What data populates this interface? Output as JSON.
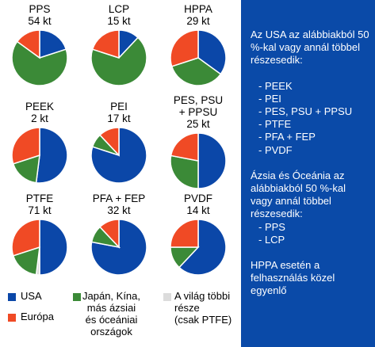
{
  "chart_data": {
    "type": "pie",
    "colors": {
      "usa": "#0b47a8",
      "europe": "#f04a25",
      "asia": "#3b8a37",
      "rest": "#dcdcdc"
    },
    "pies": [
      {
        "title": "PPS",
        "subtitle": "54 kt",
        "values": {
          "usa": 20,
          "europe": 15,
          "asia": 65,
          "rest": 0
        }
      },
      {
        "title": "LCP",
        "subtitle": "15 kt",
        "values": {
          "usa": 12,
          "europe": 20,
          "asia": 68,
          "rest": 0
        }
      },
      {
        "title": "HPPA",
        "subtitle": "29 kt",
        "values": {
          "usa": 35,
          "europe": 30,
          "asia": 35,
          "rest": 0
        }
      },
      {
        "title": "PEEK",
        "subtitle": "2 kt",
        "values": {
          "usa": 52,
          "europe": 30,
          "asia": 18,
          "rest": 0
        }
      },
      {
        "title": "PEI",
        "subtitle": "17 kt",
        "values": {
          "usa": 80,
          "europe": 12,
          "asia": 8,
          "rest": 0
        }
      },
      {
        "title": "PES, PSU\n+ PPSU",
        "subtitle": "25 kt",
        "values": {
          "usa": 50,
          "europe": 22,
          "asia": 28,
          "rest": 0
        }
      },
      {
        "title": "PTFE",
        "subtitle": "71 kt",
        "values": {
          "usa": 50,
          "europe": 30,
          "asia": 18,
          "rest": 2
        }
      },
      {
        "title": "PFA + FEP",
        "subtitle": "32 kt",
        "values": {
          "usa": 78,
          "europe": 12,
          "asia": 10,
          "rest": 0
        }
      },
      {
        "title": "PVDF",
        "subtitle": "14 kt",
        "values": {
          "usa": 62,
          "europe": 25,
          "asia": 13,
          "rest": 0
        }
      }
    ],
    "legend": [
      {
        "key": "usa",
        "label": "USA"
      },
      {
        "key": "europe",
        "label": "Európa"
      },
      {
        "key": "asia",
        "label": "Japán, Kína,\nmás ázsiai\nés óceániai\nországok"
      },
      {
        "key": "rest",
        "label": "A világ többi\nrésze\n(csak PTFE)"
      }
    ]
  },
  "sidebar": {
    "para1": "Az USA az alábbiakból 50 %-kal vagy annál többel részesedik:",
    "list1": [
      "- PEEK",
      "- PEI",
      "- PES, PSU + PPSU",
      "- PTFE",
      "- PFA + FEP",
      "- PVDF"
    ],
    "para2": "Ázsia és Óceánia az alábbiakból 50 %-kal vagy annál többel részesedik:",
    "list2": [
      "- PPS",
      "- LCP"
    ],
    "para3": "HPPA esetén a felhasználás közel egyenlő"
  }
}
